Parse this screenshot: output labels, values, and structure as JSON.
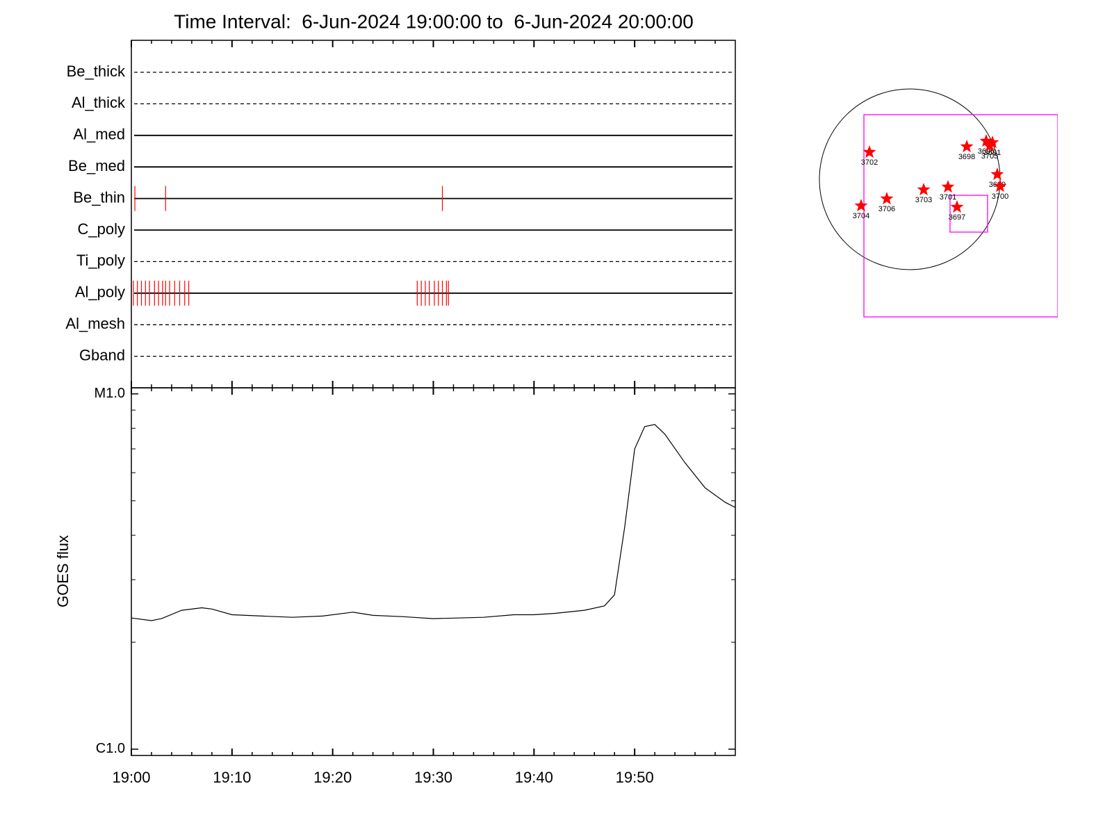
{
  "chart_data": {
    "type": "line",
    "title": "Time Interval:  6-Jun-2024 19:00:00 to  6-Jun-2024 20:00:00",
    "xlim": [
      0,
      60
    ],
    "xticks": [
      {
        "value": 0,
        "label": "19:00"
      },
      {
        "value": 10,
        "label": "19:10"
      },
      {
        "value": 20,
        "label": "19:20"
      },
      {
        "value": 30,
        "label": "19:30"
      },
      {
        "value": 40,
        "label": "19:40"
      },
      {
        "value": 50,
        "label": "19:50"
      }
    ],
    "xticks_minor": [
      2,
      4,
      6,
      8,
      12,
      14,
      16,
      18,
      22,
      24,
      26,
      28,
      32,
      34,
      36,
      38,
      42,
      44,
      46,
      48,
      52,
      54,
      56,
      58
    ],
    "filters": [
      {
        "name": "Be_thick",
        "style": "dashed",
        "events": []
      },
      {
        "name": "Al_thick",
        "style": "dashed",
        "events": []
      },
      {
        "name": "Al_med",
        "style": "solid",
        "events": []
      },
      {
        "name": "Be_med",
        "style": "solid",
        "events": []
      },
      {
        "name": "Be_thin",
        "style": "solid",
        "events": [
          0.35,
          3.4,
          30.9
        ]
      },
      {
        "name": "C_poly",
        "style": "solid",
        "events": []
      },
      {
        "name": "Ti_poly",
        "style": "dashed",
        "events": []
      },
      {
        "name": "Al_poly",
        "style": "solid",
        "events": [
          0.2,
          0.6,
          1.0,
          1.4,
          1.8,
          2.3,
          2.7,
          3.1,
          3.4,
          3.8,
          4.3,
          4.8,
          5.3,
          5.7,
          28.4,
          28.8,
          29.2,
          29.6,
          30.1,
          30.5,
          30.9,
          31.3,
          31.5
        ]
      },
      {
        "name": "Al_mesh",
        "style": "dashed",
        "events": []
      },
      {
        "name": "Gband",
        "style": "dashed",
        "events": []
      }
    ],
    "event_color": "#ff0000",
    "ylabel": "GOES flux",
    "log_y": true,
    "ylim": [
      9.6e-07,
      1.04e-05
    ],
    "yticks": [
      {
        "value": 1e-05,
        "label": "M1.0"
      },
      {
        "value": 1e-06,
        "label": "C1.0"
      }
    ],
    "yticks_minor": [
      2e-06,
      3e-06,
      4e-06,
      5e-06,
      6e-06,
      7e-06,
      8e-06,
      9e-06
    ],
    "x": [
      0,
      2,
      3,
      5,
      7,
      8,
      10,
      13,
      16,
      19,
      22,
      24,
      27,
      30,
      35,
      38,
      40,
      42,
      45,
      47,
      48,
      49,
      50,
      51,
      52,
      53,
      55,
      57,
      59,
      60
    ],
    "series": [
      {
        "name": "GOES",
        "color": "#000000",
        "values": [
          2.34e-06,
          2.3e-06,
          2.33e-06,
          2.46e-06,
          2.5e-06,
          2.48e-06,
          2.39e-06,
          2.37e-06,
          2.35e-06,
          2.37e-06,
          2.43e-06,
          2.38e-06,
          2.36e-06,
          2.33e-06,
          2.35e-06,
          2.39e-06,
          2.39e-06,
          2.41e-06,
          2.46e-06,
          2.53e-06,
          2.72e-06,
          4.2e-06,
          7e-06,
          8.09e-06,
          8.2e-06,
          7.7e-06,
          6.4e-06,
          5.44e-06,
          4.95e-06,
          4.79e-06
        ]
      }
    ],
    "sun_map": {
      "radius": 960,
      "boxes": [
        {
          "x": [
            -487,
            1573
          ],
          "y": [
            -1462,
            687
          ]
        },
        {
          "x": [
            428,
            827
          ],
          "y": [
            -561,
            -170
          ]
        }
      ],
      "box_color": "#ff00ff",
      "star_color": "#ff0000",
      "regions": [
        {
          "label": "3702",
          "x": -428,
          "y": 288
        },
        {
          "label": "3698",
          "x": 606,
          "y": 347
        },
        {
          "label": "3696",
          "x": 812,
          "y": 406
        },
        {
          "label": "3691",
          "x": 879,
          "y": 391
        },
        {
          "label": "3705",
          "x": 849,
          "y": 354
        },
        {
          "label": "3699",
          "x": 930,
          "y": 52
        },
        {
          "label": "3700",
          "x": 960,
          "y": -74
        },
        {
          "label": "3701",
          "x": 406,
          "y": -81
        },
        {
          "label": "3703",
          "x": 148,
          "y": -111
        },
        {
          "label": "3706",
          "x": -244,
          "y": -207
        },
        {
          "label": "3704",
          "x": -517,
          "y": -281
        },
        {
          "label": "3697",
          "x": 502,
          "y": -295
        }
      ]
    }
  }
}
